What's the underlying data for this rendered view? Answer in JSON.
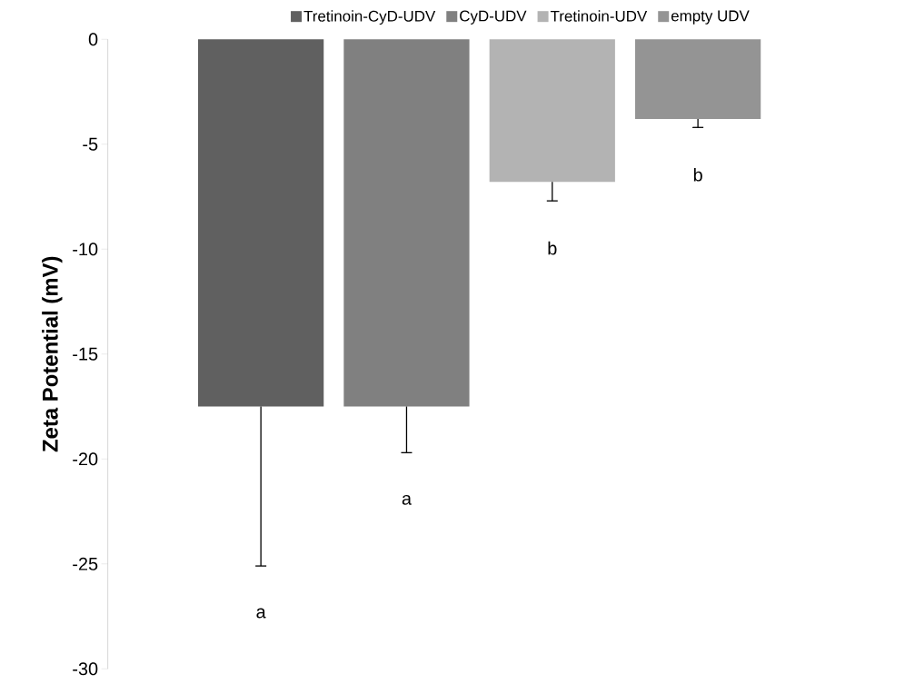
{
  "chart_data": {
    "type": "bar",
    "ylabel": "Zeta Potential (mV)",
    "categories": [
      null
    ],
    "series": [
      {
        "name": "Tretinoin-CyD-UDV",
        "color": "#606060",
        "values": [
          -17.5
        ],
        "errors": [
          [
            -25.1,
            -17.5
          ]
        ]
      },
      {
        "name": "CyD-UDV",
        "color": "#808080",
        "values": [
          -17.5
        ],
        "errors": [
          [
            -19.7,
            -17.5
          ]
        ]
      },
      {
        "name": "Tretinoin-UDV",
        "color": "#b3b3b3",
        "values": [
          -6.8
        ],
        "errors": [
          [
            -7.7,
            -6.8
          ]
        ]
      },
      {
        "name": "empty UDV",
        "color": "#949494",
        "values": [
          -3.8
        ],
        "errors": [
          [
            -4.2,
            -3.8
          ]
        ]
      }
    ],
    "ylim": [
      -30,
      0
    ],
    "yticks": [
      -30,
      -25,
      -20,
      -15,
      -10,
      -5,
      0
    ],
    "annotations": [
      "a",
      "a",
      "b",
      "b"
    ],
    "legend": "top",
    "grid": false
  }
}
